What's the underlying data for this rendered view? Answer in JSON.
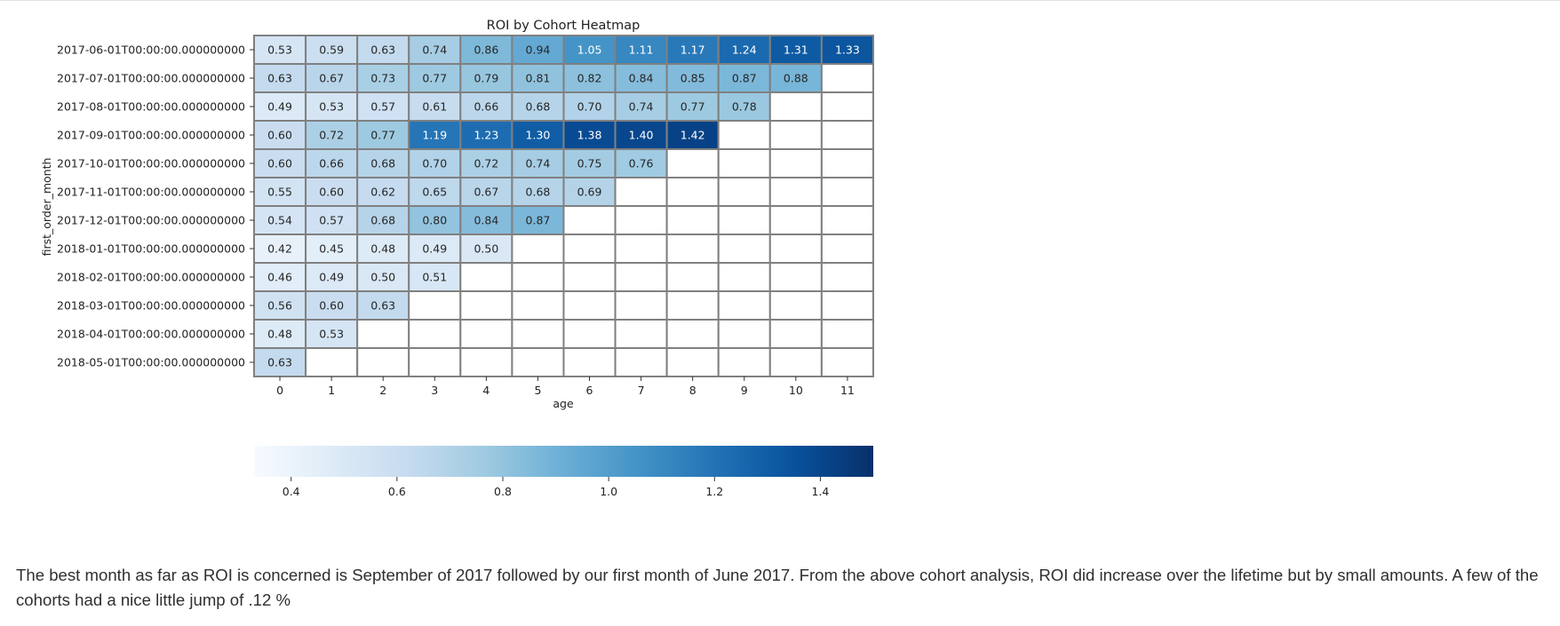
{
  "chart_data": {
    "type": "heatmap",
    "title": "ROI by Cohort Heatmap",
    "xlabel": "age",
    "ylabel": "first_order_month",
    "x": [
      "0",
      "1",
      "2",
      "3",
      "4",
      "5",
      "6",
      "7",
      "8",
      "9",
      "10",
      "11"
    ],
    "y": [
      "2017-06-01T00:00:00.000000000",
      "2017-07-01T00:00:00.000000000",
      "2017-08-01T00:00:00.000000000",
      "2017-09-01T00:00:00.000000000",
      "2017-10-01T00:00:00.000000000",
      "2017-11-01T00:00:00.000000000",
      "2017-12-01T00:00:00.000000000",
      "2018-01-01T00:00:00.000000000",
      "2018-02-01T00:00:00.000000000",
      "2018-03-01T00:00:00.000000000",
      "2018-04-01T00:00:00.000000000",
      "2018-05-01T00:00:00.000000000"
    ],
    "values": [
      [
        0.53,
        0.59,
        0.63,
        0.74,
        0.86,
        0.94,
        1.05,
        1.11,
        1.17,
        1.24,
        1.31,
        1.33
      ],
      [
        0.63,
        0.67,
        0.73,
        0.77,
        0.79,
        0.81,
        0.82,
        0.84,
        0.85,
        0.87,
        0.88,
        null
      ],
      [
        0.49,
        0.53,
        0.57,
        0.61,
        0.66,
        0.68,
        0.7,
        0.74,
        0.77,
        0.78,
        null,
        null
      ],
      [
        0.6,
        0.72,
        0.77,
        1.19,
        1.23,
        1.3,
        1.38,
        1.4,
        1.42,
        null,
        null,
        null
      ],
      [
        0.6,
        0.66,
        0.68,
        0.7,
        0.72,
        0.74,
        0.75,
        0.76,
        null,
        null,
        null,
        null
      ],
      [
        0.55,
        0.6,
        0.62,
        0.65,
        0.67,
        0.68,
        0.69,
        null,
        null,
        null,
        null,
        null
      ],
      [
        0.54,
        0.57,
        0.68,
        0.8,
        0.84,
        0.87,
        null,
        null,
        null,
        null,
        null,
        null
      ],
      [
        0.42,
        0.45,
        0.48,
        0.49,
        0.5,
        null,
        null,
        null,
        null,
        null,
        null,
        null
      ],
      [
        0.46,
        0.49,
        0.5,
        0.51,
        null,
        null,
        null,
        null,
        null,
        null,
        null,
        null
      ],
      [
        0.56,
        0.6,
        0.63,
        null,
        null,
        null,
        null,
        null,
        null,
        null,
        null,
        null
      ],
      [
        0.48,
        0.53,
        null,
        null,
        null,
        null,
        null,
        null,
        null,
        null,
        null,
        null
      ],
      [
        0.63,
        null,
        null,
        null,
        null,
        null,
        null,
        null,
        null,
        null,
        null,
        null
      ]
    ],
    "colorscale": "Blues",
    "colorbar": {
      "range": [
        0.33,
        1.5
      ],
      "ticks": [
        "0.4",
        "0.6",
        "0.8",
        "1.0",
        "1.2",
        "1.4"
      ],
      "orientation": "horizontal"
    },
    "grid": false,
    "cell_border_color": "#808080"
  },
  "note": {
    "text": "The best month as far as ROI is concerned is September of 2017 followed by our first month of June 2017. From the above cohort analysis, ROI did increase over the lifetime but by small amounts. A few of the cohorts had a nice little jump of .12 %"
  }
}
